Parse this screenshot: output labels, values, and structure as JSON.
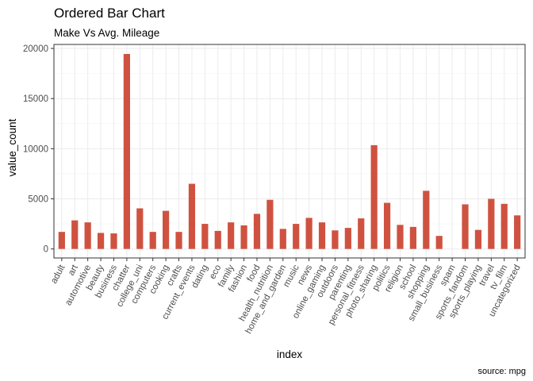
{
  "chart_data": {
    "type": "bar",
    "title": "Ordered Bar Chart",
    "subtitle": "Make Vs Avg. Mileage",
    "xlabel": "index",
    "ylabel": "value_count",
    "caption": "source: mpg",
    "ylim": [
      -900,
      20400
    ],
    "yticks": [
      0,
      5000,
      10000,
      15000,
      20000
    ],
    "ytick_labels": [
      "0",
      "5000",
      "10000",
      "15000",
      "20000"
    ],
    "grid": true,
    "bar_color": "#cf5240",
    "categories": [
      "adult",
      "art",
      "automotive",
      "beauty",
      "business",
      "chatter",
      "college_uni",
      "computers",
      "cooking",
      "crafts",
      "current_events",
      "dating",
      "eco",
      "family",
      "fashion",
      "food",
      "health_nutrition",
      "home_and_garden",
      "music",
      "news",
      "online_gaming",
      "outdoors",
      "parenting",
      "personal_fitness",
      "photo_sharing",
      "politics",
      "religion",
      "school",
      "shopping",
      "small_business",
      "spam",
      "sports_fandom",
      "sports_playing",
      "travel",
      "tv_film",
      "uncategorized"
    ],
    "values": [
      1700,
      2850,
      2650,
      1600,
      1550,
      19450,
      4050,
      1700,
      3800,
      1700,
      6500,
      2500,
      1800,
      2650,
      2350,
      3500,
      4900,
      2000,
      2500,
      3100,
      2650,
      1850,
      2100,
      3050,
      10350,
      4600,
      2400,
      2200,
      5800,
      1300,
      0,
      4450,
      1900,
      5000,
      4500,
      3350
    ]
  }
}
